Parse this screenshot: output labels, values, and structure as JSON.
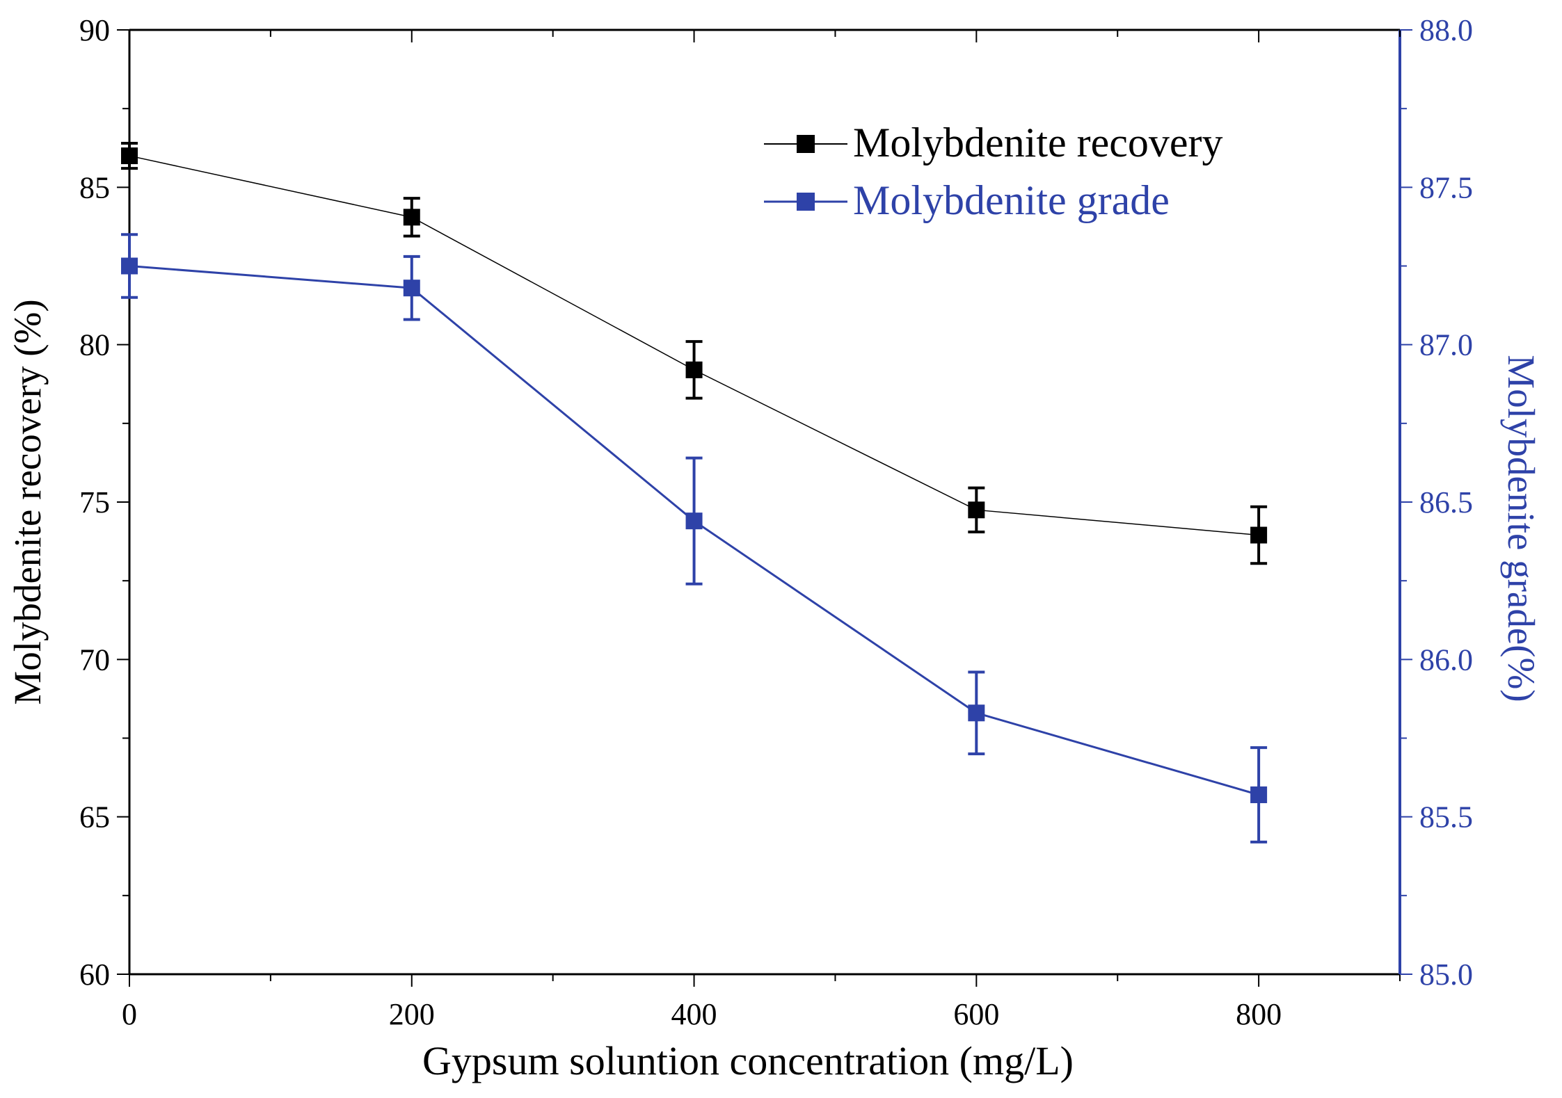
{
  "chart_data": {
    "type": "line",
    "title": "",
    "xlabel": "Gypsum soluntion concentration (mg/L)",
    "ylabel": "Molybdenite recovery (%)",
    "y2label": "Molybdenite grade(%)",
    "xlim": [
      0,
      900
    ],
    "ylim": [
      60,
      90
    ],
    "y2lim": [
      85.0,
      88.0
    ],
    "x_ticks": [
      "0",
      "200",
      "400",
      "600",
      "800"
    ],
    "y_ticks": [
      "60",
      "65",
      "70",
      "75",
      "80",
      "85",
      "90"
    ],
    "y2_ticks": [
      "85.0",
      "85.5",
      "86.0",
      "86.5",
      "87.0",
      "87.5",
      "88.0"
    ],
    "x": [
      0,
      200,
      400,
      600,
      800
    ],
    "legend_position": "top-right",
    "series": [
      {
        "name": "Molybdenite recovery",
        "axis": "left",
        "color": "#000000",
        "values": [
          86.0,
          84.05,
          79.2,
          74.75,
          73.95
        ],
        "errors": [
          0.4,
          0.6,
          0.9,
          0.7,
          0.9
        ]
      },
      {
        "name": "Molybdenite grade",
        "axis": "right",
        "color": "#2e42a8",
        "values": [
          87.25,
          87.18,
          86.44,
          85.83,
          85.57
        ],
        "errors": [
          0.1,
          0.1,
          0.2,
          0.13,
          0.15
        ]
      }
    ]
  }
}
